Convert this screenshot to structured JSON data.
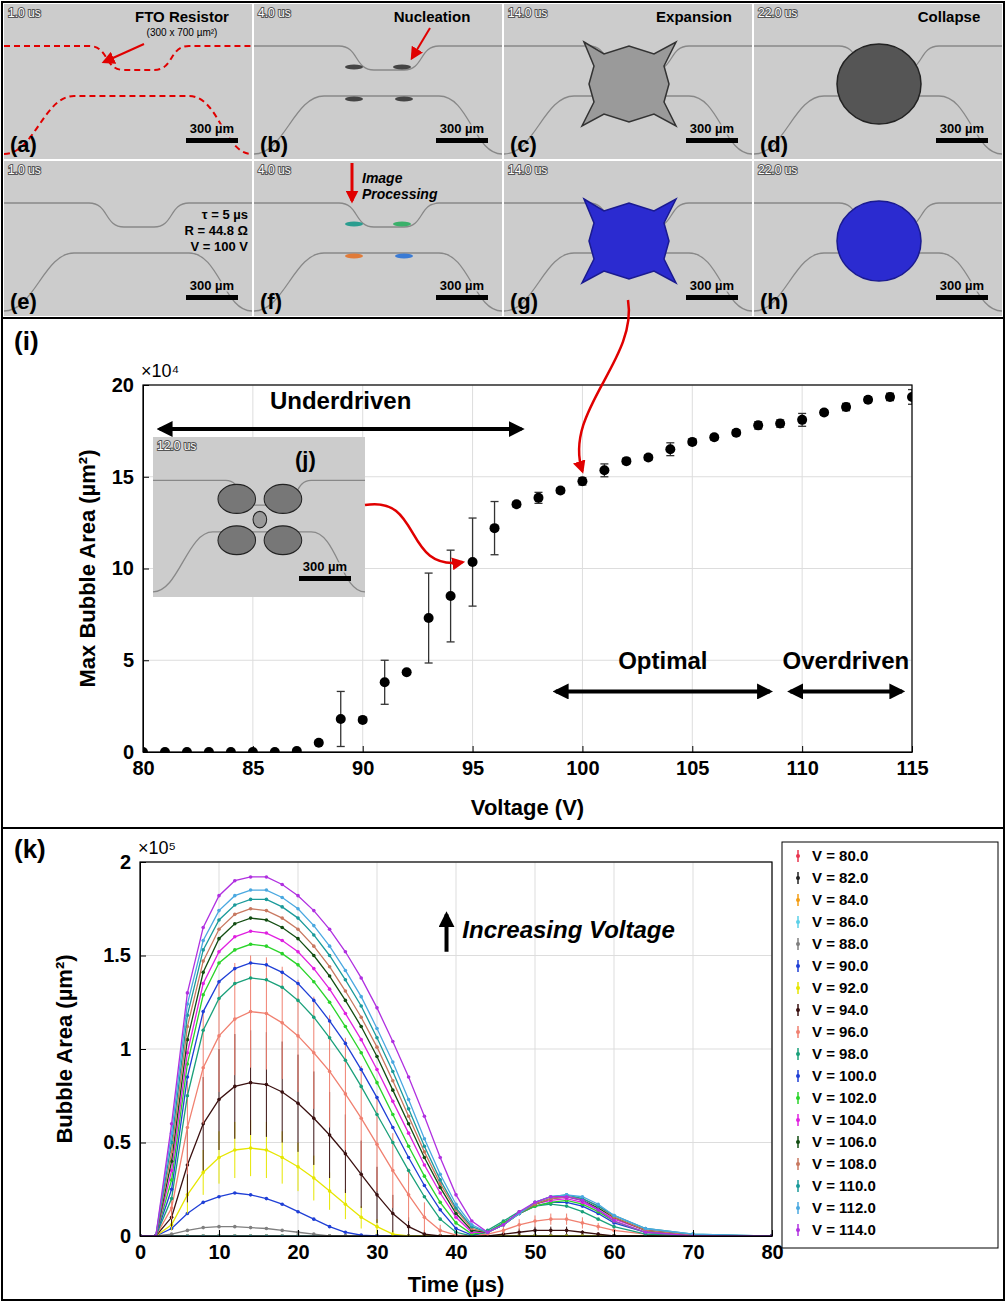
{
  "panels": [
    {
      "letter": "(a)",
      "time": "1.0 us",
      "scale_bar": "300 µm",
      "labels": [
        "FTO Resistor",
        "(300 x 700 µm²)"
      ]
    },
    {
      "letter": "(b)",
      "time": "4.0 us",
      "scale_bar": "300 µm",
      "labels": [
        "Nucleation"
      ]
    },
    {
      "letter": "(c)",
      "time": "14.0 us",
      "scale_bar": "300 µm",
      "labels": [
        "Expansion"
      ]
    },
    {
      "letter": "(d)",
      "time": "22.0 us",
      "scale_bar": "300 µm",
      "labels": [
        "Collapse"
      ]
    },
    {
      "letter": "(e)",
      "time": "1.0 us",
      "scale_bar": "300 µm",
      "labels": [
        "τ = 5 µs",
        "R = 44.8 Ω",
        "V = 100 V"
      ]
    },
    {
      "letter": "(f)",
      "time": "4.0 us",
      "scale_bar": "300 µm",
      "labels": [
        "Image Processing"
      ]
    },
    {
      "letter": "(g)",
      "time": "14.0 us",
      "scale_bar": "300 µm"
    },
    {
      "letter": "(h)",
      "time": "22.0 us",
      "scale_bar": "300 µm"
    }
  ],
  "chart_data": [
    {
      "type": "scatter",
      "letter": "(i)",
      "x_label": "Voltage (V)",
      "y_label": "Max Bubble Area (µm²)",
      "y_multiplier": "×10⁴",
      "x": [
        80,
        81,
        82,
        83,
        84,
        85,
        86,
        87,
        88,
        89,
        90,
        91,
        92,
        93,
        94,
        95,
        96,
        97,
        98,
        99,
        100,
        101,
        102,
        103,
        104,
        105,
        106,
        107,
        108,
        109,
        110,
        111,
        112,
        113,
        114,
        115
      ],
      "values": [
        0,
        0,
        0,
        0,
        0,
        0,
        0,
        0.05,
        0.5,
        1.8,
        1.75,
        3.8,
        4.35,
        7.3,
        8.5,
        10.35,
        12.2,
        13.5,
        13.85,
        14.25,
        14.75,
        15.35,
        15.85,
        16.05,
        16.5,
        16.9,
        17.15,
        17.4,
        17.8,
        17.9,
        18.1,
        18.5,
        18.8,
        19.2,
        19.35,
        19.35
      ],
      "errors": [
        0,
        0,
        0,
        0,
        0,
        0,
        0,
        0.02,
        0.1,
        1.5,
        0.1,
        1.2,
        0.1,
        2.45,
        2.5,
        2.4,
        1.45,
        0.15,
        0.3,
        0.15,
        0.2,
        0.35,
        0.15,
        0.15,
        0.35,
        0.15,
        0.15,
        0.15,
        0.2,
        0.2,
        0.35,
        0.15,
        0.2,
        0.15,
        0.2,
        0.4
      ],
      "color": "#000000",
      "marker": "circle",
      "grid": true,
      "xlim": [
        80,
        115
      ],
      "ylim": [
        0,
        20
      ],
      "xticks": [
        80,
        85,
        90,
        95,
        100,
        105,
        110,
        115
      ],
      "yticks": [
        0,
        5,
        10,
        15,
        20
      ],
      "annotations": [
        {
          "text": "Underdriven"
        },
        {
          "text": "Optimal"
        },
        {
          "text": "Overdriven"
        }
      ],
      "inset": {
        "letter": "(j)",
        "time": "12.0 us",
        "scale_bar": "300 µm"
      }
    },
    {
      "type": "line",
      "letter": "(k)",
      "x_label": "Time (µs)",
      "y_label": "Bubble Area (µm²)",
      "y_multiplier": "×10⁵",
      "x": [
        0,
        2,
        4,
        6,
        8,
        10,
        12,
        14,
        16,
        18,
        20,
        22,
        24,
        26,
        28,
        30,
        32,
        34,
        36,
        38,
        40,
        42,
        44,
        46,
        48,
        50,
        52,
        54,
        56,
        58,
        60,
        64,
        70,
        80
      ],
      "xlim": [
        0,
        80
      ],
      "ylim": [
        0,
        2
      ],
      "xticks": [
        0,
        10,
        20,
        30,
        40,
        50,
        60,
        70,
        80
      ],
      "yticks": [
        0,
        0.5,
        1,
        1.5,
        2
      ],
      "grid": true,
      "legend": "right",
      "marker": "dot",
      "line_style": "solid",
      "annotations": [
        {
          "text": "Increasing Voltage"
        }
      ],
      "series": [
        {
          "name": "V = 80.0",
          "color": "#e8344e",
          "values": [
            0,
            0,
            0,
            0,
            0,
            0,
            0,
            0,
            0,
            0,
            0,
            0,
            0,
            0,
            0,
            0,
            0,
            0,
            0,
            0,
            0,
            0,
            0,
            0,
            0,
            0,
            0,
            0,
            0,
            0,
            0,
            0,
            0,
            0
          ]
        },
        {
          "name": "V = 82.0",
          "color": "#222222",
          "values": [
            0,
            0,
            0,
            0,
            0,
            0,
            0,
            0,
            0,
            0,
            0,
            0,
            0,
            0,
            0,
            0,
            0,
            0,
            0,
            0,
            0,
            0,
            0,
            0,
            0,
            0,
            0,
            0,
            0,
            0,
            0,
            0,
            0,
            0
          ]
        },
        {
          "name": "V = 84.0",
          "color": "#f39c12",
          "values": [
            0,
            0,
            0,
            0,
            0,
            0,
            0,
            0,
            0,
            0,
            0,
            0,
            0,
            0,
            0,
            0,
            0,
            0,
            0,
            0,
            0,
            0,
            0,
            0,
            0,
            0,
            0,
            0,
            0,
            0,
            0,
            0,
            0,
            0
          ]
        },
        {
          "name": "V = 86.0",
          "color": "#5bd0e8",
          "values": [
            0,
            0,
            0,
            0,
            0,
            0,
            0,
            0,
            0,
            0,
            0,
            0,
            0,
            0,
            0,
            0,
            0,
            0,
            0,
            0,
            0,
            0,
            0,
            0,
            0,
            0,
            0,
            0,
            0,
            0,
            0,
            0,
            0,
            0
          ]
        },
        {
          "name": "V = 88.0",
          "color": "#7f7f7f",
          "values": [
            0,
            0,
            0.01,
            0.03,
            0.045,
            0.05,
            0.05,
            0.045,
            0.04,
            0.03,
            0.02,
            0.01,
            0,
            0,
            0,
            0,
            0,
            0,
            0,
            0,
            0,
            0,
            0,
            0,
            0,
            0,
            0,
            0,
            0,
            0,
            0,
            0,
            0,
            0
          ]
        },
        {
          "name": "V = 90.0",
          "color": "#1f3fd6",
          "values": [
            0,
            0,
            0.04,
            0.12,
            0.18,
            0.21,
            0.23,
            0.22,
            0.2,
            0.17,
            0.13,
            0.09,
            0.05,
            0.02,
            0.005,
            0,
            0,
            0,
            0,
            0,
            0,
            0,
            0,
            0,
            0,
            0,
            0,
            0,
            0,
            0,
            0,
            0,
            0,
            0
          ]
        },
        {
          "name": "V = 92.0",
          "color": "#e6e600",
          "values": [
            0,
            0,
            0.06,
            0.22,
            0.34,
            0.42,
            0.46,
            0.47,
            0.46,
            0.42,
            0.37,
            0.31,
            0.24,
            0.17,
            0.1,
            0.05,
            0.01,
            0,
            0,
            0,
            0,
            0,
            0,
            0,
            0,
            0,
            0,
            0,
            0,
            0,
            0,
            0,
            0,
            0
          ],
          "errors": [
            0,
            0,
            0.03,
            0.1,
            0.12,
            0.14,
            0.15,
            0.15,
            0.15,
            0.14,
            0.13,
            0.12,
            0.1,
            0.08,
            0.06,
            0.04,
            0.02,
            0,
            0,
            0,
            0,
            0,
            0,
            0,
            0,
            0,
            0,
            0,
            0,
            0,
            0,
            0,
            0,
            0
          ]
        },
        {
          "name": "V = 94.0",
          "color": "#3a1010",
          "values": [
            0,
            0,
            0.1,
            0.38,
            0.6,
            0.73,
            0.8,
            0.82,
            0.81,
            0.77,
            0.71,
            0.63,
            0.54,
            0.44,
            0.33,
            0.22,
            0.12,
            0.05,
            0.01,
            0,
            0,
            0,
            0,
            0.01,
            0.02,
            0.03,
            0.03,
            0.03,
            0.02,
            0.01,
            0,
            0,
            0,
            0
          ],
          "errors": [
            0,
            0,
            0.05,
            0.2,
            0.25,
            0.27,
            0.28,
            0.28,
            0.28,
            0.27,
            0.26,
            0.25,
            0.23,
            0.21,
            0.18,
            0.15,
            0.1,
            0.05,
            0.02,
            0,
            0,
            0,
            0,
            0.01,
            0.02,
            0.02,
            0.02,
            0.02,
            0.01,
            0.01,
            0,
            0,
            0,
            0
          ]
        },
        {
          "name": "V = 96.0",
          "color": "#f08070",
          "values": [
            0,
            0,
            0.15,
            0.58,
            0.9,
            1.07,
            1.16,
            1.2,
            1.19,
            1.14,
            1.07,
            0.98,
            0.88,
            0.76,
            0.63,
            0.49,
            0.35,
            0.22,
            0.1,
            0.03,
            0.005,
            0,
            0.01,
            0.03,
            0.06,
            0.08,
            0.09,
            0.09,
            0.07,
            0.05,
            0.03,
            0.01,
            0,
            0
          ],
          "errors": [
            0,
            0,
            0.06,
            0.25,
            0.3,
            0.3,
            0.3,
            0.3,
            0.3,
            0.3,
            0.3,
            0.3,
            0.3,
            0.3,
            0.28,
            0.25,
            0.2,
            0.14,
            0.08,
            0.03,
            0.01,
            0,
            0.01,
            0.02,
            0.03,
            0.03,
            0.03,
            0.03,
            0.03,
            0.02,
            0.01,
            0,
            0,
            0
          ]
        },
        {
          "name": "V = 98.0",
          "color": "#1aa07a",
          "values": [
            0,
            0,
            0.2,
            0.75,
            1.1,
            1.27,
            1.35,
            1.38,
            1.37,
            1.33,
            1.26,
            1.17,
            1.06,
            0.94,
            0.8,
            0.65,
            0.5,
            0.35,
            0.21,
            0.09,
            0.02,
            0,
            0.03,
            0.08,
            0.13,
            0.16,
            0.17,
            0.16,
            0.13,
            0.09,
            0.05,
            0.01,
            0,
            0
          ]
        },
        {
          "name": "V = 100.0",
          "color": "#1f3fd6",
          "values": [
            0,
            0,
            0.25,
            0.85,
            1.2,
            1.36,
            1.43,
            1.46,
            1.45,
            1.41,
            1.35,
            1.26,
            1.15,
            1.03,
            0.89,
            0.74,
            0.58,
            0.42,
            0.27,
            0.14,
            0.04,
            0.005,
            0.02,
            0.07,
            0.12,
            0.16,
            0.18,
            0.18,
            0.16,
            0.12,
            0.07,
            0.02,
            0,
            0
          ]
        },
        {
          "name": "V = 102.0",
          "color": "#2ad42a",
          "values": [
            0,
            0,
            0.3,
            0.92,
            1.29,
            1.46,
            1.53,
            1.56,
            1.55,
            1.51,
            1.45,
            1.36,
            1.25,
            1.12,
            0.98,
            0.82,
            0.65,
            0.48,
            0.32,
            0.18,
            0.07,
            0.01,
            0.02,
            0.07,
            0.12,
            0.16,
            0.18,
            0.19,
            0.17,
            0.13,
            0.08,
            0.02,
            0,
            0
          ]
        },
        {
          "name": "V = 104.0",
          "color": "#e020e0",
          "values": [
            0,
            0,
            0.35,
            0.98,
            1.35,
            1.52,
            1.6,
            1.63,
            1.62,
            1.58,
            1.52,
            1.43,
            1.32,
            1.19,
            1.05,
            0.89,
            0.72,
            0.55,
            0.38,
            0.23,
            0.1,
            0.02,
            0.02,
            0.06,
            0.12,
            0.17,
            0.19,
            0.2,
            0.18,
            0.14,
            0.09,
            0.03,
            0,
            0
          ]
        },
        {
          "name": "V = 106.0",
          "color": "#124d12",
          "values": [
            0,
            0,
            0.4,
            1.05,
            1.41,
            1.59,
            1.67,
            1.7,
            1.69,
            1.65,
            1.59,
            1.5,
            1.39,
            1.26,
            1.12,
            0.96,
            0.78,
            0.6,
            0.42,
            0.26,
            0.12,
            0.03,
            0.02,
            0.06,
            0.12,
            0.17,
            0.2,
            0.21,
            0.19,
            0.15,
            0.1,
            0.03,
            0.005,
            0
          ]
        },
        {
          "name": "V = 108.0",
          "color": "#c87860",
          "values": [
            0,
            0,
            0.45,
            1.12,
            1.47,
            1.64,
            1.72,
            1.75,
            1.74,
            1.7,
            1.64,
            1.55,
            1.44,
            1.31,
            1.17,
            1.01,
            0.83,
            0.64,
            0.45,
            0.28,
            0.14,
            0.04,
            0.02,
            0.06,
            0.12,
            0.17,
            0.2,
            0.21,
            0.2,
            0.16,
            0.1,
            0.03,
            0.005,
            0
          ]
        },
        {
          "name": "V = 110.0",
          "color": "#1a9a9a",
          "values": [
            0,
            0,
            0.5,
            1.18,
            1.53,
            1.69,
            1.77,
            1.8,
            1.8,
            1.76,
            1.7,
            1.61,
            1.5,
            1.37,
            1.23,
            1.06,
            0.88,
            0.68,
            0.48,
            0.3,
            0.15,
            0.05,
            0.02,
            0.06,
            0.12,
            0.18,
            0.21,
            0.22,
            0.2,
            0.16,
            0.11,
            0.04,
            0.01,
            0
          ]
        },
        {
          "name": "V = 112.0",
          "color": "#4aa8e0",
          "values": [
            0,
            0,
            0.55,
            1.24,
            1.58,
            1.74,
            1.82,
            1.85,
            1.85,
            1.81,
            1.75,
            1.66,
            1.55,
            1.42,
            1.28,
            1.11,
            0.93,
            0.73,
            0.52,
            0.33,
            0.17,
            0.06,
            0.02,
            0.06,
            0.12,
            0.18,
            0.21,
            0.22,
            0.21,
            0.17,
            0.11,
            0.04,
            0.01,
            0
          ]
        },
        {
          "name": "V = 114.0",
          "color": "#b030e0",
          "values": [
            0,
            0,
            0.6,
            1.3,
            1.65,
            1.82,
            1.9,
            1.92,
            1.92,
            1.88,
            1.82,
            1.74,
            1.64,
            1.52,
            1.38,
            1.22,
            1.04,
            0.85,
            0.64,
            0.42,
            0.22,
            0.08,
            0.02,
            0.06,
            0.13,
            0.18,
            0.21,
            0.21,
            0.19,
            0.14,
            0.08,
            0.02,
            0,
            0
          ]
        }
      ]
    }
  ]
}
